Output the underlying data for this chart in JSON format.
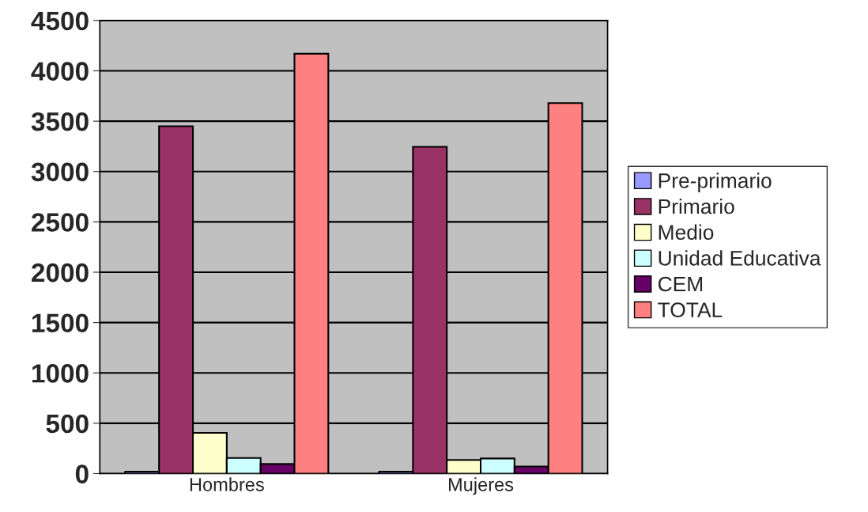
{
  "chart_data": {
    "type": "bar",
    "categories": [
      "Hombres",
      "Mujeres"
    ],
    "series": [
      {
        "name": "Pre-primario",
        "color": "#9999ff",
        "values": [
          20,
          20
        ]
      },
      {
        "name": "Primario",
        "color": "#993366",
        "values": [
          3450,
          3245
        ]
      },
      {
        "name": "Medio",
        "color": "#ffffcc",
        "values": [
          405,
          135
        ]
      },
      {
        "name": "Unidad Educativa",
        "color": "#ccffff",
        "values": [
          155,
          150
        ]
      },
      {
        "name": "CEM",
        "color": "#660066",
        "values": [
          95,
          70
        ]
      },
      {
        "name": "TOTAL",
        "color": "#ff8080",
        "values": [
          4170,
          3680
        ]
      }
    ],
    "ylim": [
      0,
      4500
    ],
    "yticks": [
      0,
      500,
      1000,
      1500,
      2000,
      2500,
      3000,
      3500,
      4000,
      4500
    ],
    "grid": "y",
    "legend": "right"
  }
}
